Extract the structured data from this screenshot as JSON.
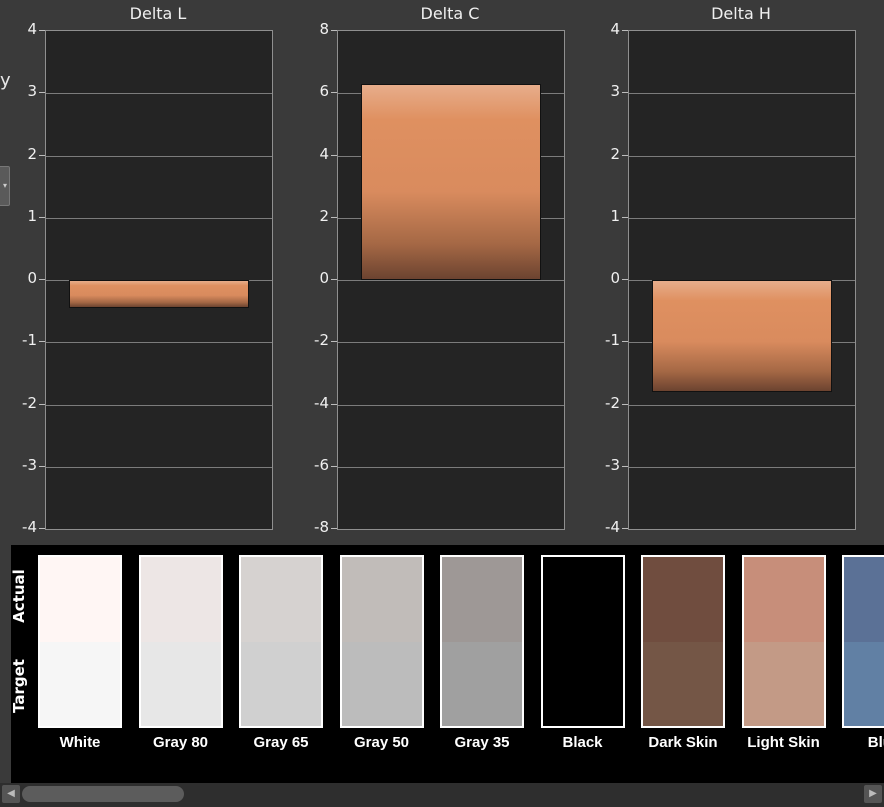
{
  "left_edge": {
    "partial_text": "y"
  },
  "charts": [
    {
      "title": "Delta L",
      "ticks": [
        "4",
        "3",
        "2",
        "1",
        "0",
        "-1",
        "-2",
        "-3",
        "-4"
      ],
      "value": -0.45,
      "ylim": [
        -4,
        4
      ]
    },
    {
      "title": "Delta C",
      "ticks": [
        "8",
        "6",
        "4",
        "2",
        "0",
        "-2",
        "-4",
        "-6",
        "-8"
      ],
      "value": 6.3,
      "ylim": [
        -8,
        8
      ]
    },
    {
      "title": "Delta H",
      "ticks": [
        "4",
        "3",
        "2",
        "1",
        "0",
        "-1",
        "-2",
        "-3",
        "-4"
      ],
      "value": -1.8,
      "ylim": [
        -4,
        4
      ]
    }
  ],
  "chart_data": [
    {
      "type": "bar",
      "title": "Delta L",
      "categories": [
        "Delta L"
      ],
      "values": [
        -0.45
      ],
      "ylim": [
        -4,
        4
      ],
      "grid": true
    },
    {
      "type": "bar",
      "title": "Delta C",
      "categories": [
        "Delta C"
      ],
      "values": [
        6.3
      ],
      "ylim": [
        -8,
        8
      ],
      "grid": true
    },
    {
      "type": "bar",
      "title": "Delta H",
      "categories": [
        "Delta H"
      ],
      "values": [
        -1.8
      ],
      "ylim": [
        -4,
        4
      ],
      "grid": true
    }
  ],
  "swatches": {
    "actual_label": "Actual",
    "target_label": "Target",
    "items": [
      {
        "name": "White",
        "actual": "#fff6f4",
        "target": "#f6f6f6"
      },
      {
        "name": "Gray 80",
        "actual": "#ede6e5",
        "target": "#e7e7e7"
      },
      {
        "name": "Gray 65",
        "actual": "#d6d2d0",
        "target": "#d0d0d0"
      },
      {
        "name": "Gray 50",
        "actual": "#c1bcb9",
        "target": "#bcbcbc"
      },
      {
        "name": "Gray 35",
        "actual": "#9e9896",
        "target": "#a0a0a0"
      },
      {
        "name": "Black",
        "actual": "#000000",
        "target": "#000000"
      },
      {
        "name": "Dark Skin",
        "actual": "#704d3f",
        "target": "#745646"
      },
      {
        "name": "Light Skin",
        "actual": "#c78e7a",
        "target": "#c39a86"
      },
      {
        "name": "Blue",
        "actual": "#5b7196",
        "target": "#6180a4"
      }
    ]
  },
  "scrollbar": {
    "left_arrow": "◀",
    "right_arrow": "▶"
  }
}
